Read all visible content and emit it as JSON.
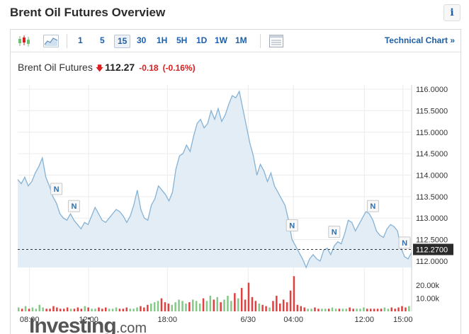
{
  "page": {
    "title": "Brent Oil Futures Overview",
    "info_label": "i"
  },
  "toolbar": {
    "timeframes": [
      "1",
      "5",
      "15",
      "30",
      "1H",
      "5H",
      "1D",
      "1W",
      "1M"
    ],
    "active_timeframe": "15",
    "technical_chart_label": "Technical Chart »",
    "icons": [
      "candlestick-icon",
      "area-chart-icon",
      "table-view-icon"
    ]
  },
  "quote": {
    "name": "Brent Oil Futures",
    "direction_icon": "down-arrow-icon",
    "price": "112.27",
    "change": "-0.18",
    "change_pct": "(-0.16%)"
  },
  "branding": {
    "logo_main": "Investing",
    "logo_suffix": ".com"
  },
  "colors": {
    "line": "#86b2d4",
    "fill": "#e3edf6",
    "down": "#d91f1f",
    "up": "#6fbf73",
    "link": "#1d5fa6",
    "news_marker": "#2f6fad"
  },
  "chart_data": {
    "type": "area",
    "y_axis": {
      "ticks": [
        "116.0000",
        "115.5000",
        "115.0000",
        "114.5000",
        "114.0000",
        "113.5000",
        "113.0000",
        "112.5000",
        "112.0000"
      ],
      "ylim": [
        111.85,
        116.1
      ]
    },
    "x_axis": {
      "ticks": [
        "08:00",
        "12:00",
        "18:00",
        "6/30",
        "04:00",
        "12:00",
        "15:00"
      ]
    },
    "current_price": 112.27,
    "current_price_label": "112.2700",
    "volume_axis": {
      "ticks": [
        "20.00k",
        "10.00k"
      ],
      "max": 25000
    },
    "news_markers": [
      "N",
      "N",
      "N",
      "N",
      "N",
      "N"
    ],
    "series": [
      {
        "values": [
          113.9,
          113.8,
          113.95,
          113.75,
          113.85,
          114.05,
          114.2,
          114.4,
          113.95,
          113.75,
          113.5,
          113.35,
          113.1,
          113.0,
          112.95,
          113.1,
          112.95,
          112.85,
          112.75,
          112.9,
          112.85,
          113.05,
          113.25,
          113.1,
          112.95,
          112.9,
          113.0,
          113.1,
          113.2,
          113.15,
          113.05,
          112.9,
          113.05,
          113.3,
          113.65,
          113.2,
          113.0,
          112.95,
          113.3,
          113.45,
          113.75,
          113.65,
          113.55,
          113.4,
          113.6,
          114.15,
          114.45,
          114.5,
          114.7,
          114.55,
          114.9,
          115.2,
          115.3,
          115.1,
          115.2,
          115.5,
          115.3,
          115.55,
          115.25,
          115.4,
          115.65,
          115.85,
          115.8,
          115.95,
          115.55,
          115.15,
          114.75,
          114.45,
          114.0,
          114.25,
          114.1,
          113.85,
          114.05,
          113.75,
          113.6,
          113.45,
          113.3,
          112.95,
          112.5,
          112.35,
          112.2,
          112.05,
          111.85,
          112.05,
          112.15,
          112.05,
          112.0,
          112.25,
          112.3,
          112.15,
          112.35,
          112.45,
          112.4,
          112.65,
          112.95,
          112.9,
          112.7,
          112.85,
          113.0,
          113.15,
          113.1,
          112.95,
          112.7,
          112.6,
          112.55,
          112.75,
          112.85,
          112.8,
          112.7,
          112.3,
          112.1,
          112.05,
          112.2
        ]
      }
    ],
    "volume": [
      3,
      2,
      4,
      2,
      3,
      2,
      5,
      3,
      2,
      2,
      4,
      3,
      2,
      2,
      3,
      2,
      2,
      3,
      2,
      4,
      3,
      2,
      2,
      3,
      2,
      3,
      2,
      2,
      3,
      2,
      2,
      3,
      2,
      2,
      3,
      4,
      3,
      5,
      6,
      7,
      8,
      10,
      7,
      6,
      5,
      7,
      9,
      8,
      6,
      7,
      9,
      8,
      6,
      10,
      8,
      12,
      9,
      11,
      7,
      9,
      12,
      8,
      14,
      10,
      18,
      9,
      22,
      11,
      8,
      6,
      5,
      4,
      3,
      8,
      12,
      6,
      9,
      7,
      16,
      27,
      5,
      4,
      3,
      2,
      2,
      3,
      2,
      2,
      2,
      2,
      3,
      2,
      2,
      2,
      2,
      3,
      2,
      2,
      2,
      3,
      2,
      2,
      2,
      2,
      2,
      3,
      2,
      3,
      2,
      3,
      4,
      3,
      4
    ]
  }
}
